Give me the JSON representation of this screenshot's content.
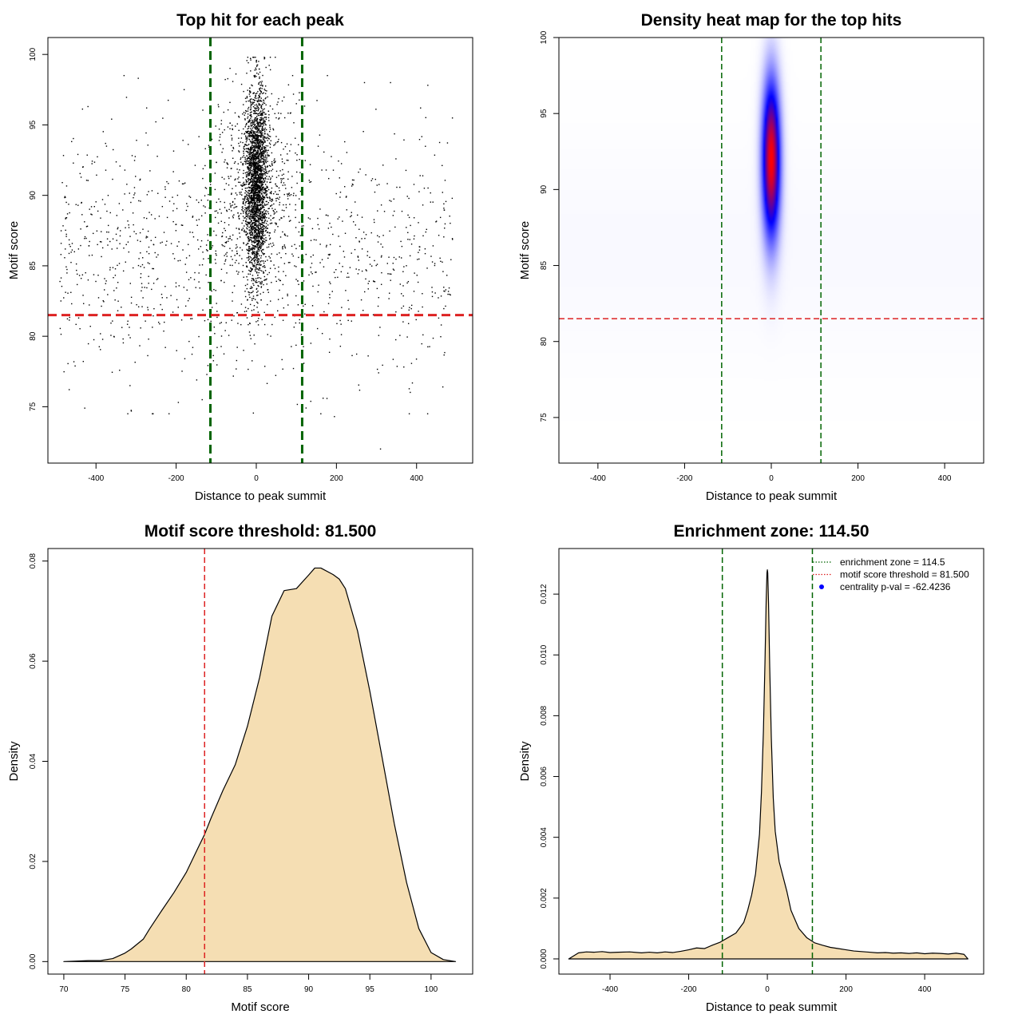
{
  "colors": {
    "zone": "#006400",
    "threshold": "#DD2222",
    "fill": "#F5DEB3",
    "line": "#000000",
    "points": "#000000",
    "heat_low": "#ffffff",
    "heat_mid": "#0000ff",
    "heat_high": "#ff0000"
  },
  "chart_data": [
    {
      "id": "scatter",
      "type": "scatter",
      "title": "Top hit for each peak",
      "xlabel": "Distance to peak summit",
      "ylabel": "Motif score",
      "xlim": [
        -520,
        540
      ],
      "ylim": [
        71,
        101.2
      ],
      "xticks": [
        -400,
        -200,
        0,
        200,
        400
      ],
      "yticks": [
        75,
        80,
        85,
        90,
        95,
        100
      ],
      "vlines": [
        -114.5,
        114.5
      ],
      "hline": 81.5,
      "points": {
        "central": {
          "n": 3200,
          "x_center": 0,
          "x_sd": 14,
          "y_mean": 90.8,
          "y_sd": 3.4,
          "y_min": 79,
          "y_max": 99.8
        },
        "background": {
          "n": 1150,
          "x_range": [
            -490,
            490
          ],
          "y_mean": 86,
          "y_sd": 4.5,
          "y_min": 74.5,
          "y_max": 98.5
        },
        "outliers": [
          [
            310,
            72
          ],
          [
            195,
            74.3
          ],
          [
            -135,
            75.5
          ],
          [
            -428,
            74.9
          ],
          [
            -330,
            98.5
          ],
          [
            -180,
            97.5
          ],
          [
            270,
            98
          ],
          [
            335,
            98
          ],
          [
            410,
            96.2
          ],
          [
            -420,
            96.3
          ]
        ]
      }
    },
    {
      "id": "heatmap",
      "type": "heatmap",
      "title": "Density heat map for the top hits",
      "xlabel": "Distance to peak summit",
      "ylabel": "Motif score",
      "xlim": [
        -490,
        490
      ],
      "ylim": [
        72,
        100
      ],
      "xticks": [
        -400,
        -200,
        0,
        200,
        400
      ],
      "yticks": [
        75,
        80,
        85,
        90,
        95,
        100
      ],
      "vlines": [
        -114.5,
        114.5
      ],
      "hline": 81.5,
      "peak": {
        "x": 0,
        "y": 92,
        "x_sd": 14,
        "y_sd": 3.5
      }
    },
    {
      "id": "score-density",
      "type": "area",
      "title": "Motif score threshold: 81.500",
      "xlabel": "Motif score",
      "ylabel": "Density",
      "xlim": [
        68.7,
        103.4
      ],
      "ylim": [
        -0.0025,
        0.0825
      ],
      "xticks": [
        70,
        75,
        80,
        85,
        90,
        95,
        100
      ],
      "yticks": [
        0.0,
        0.02,
        0.04,
        0.06,
        0.08
      ],
      "ytick_labels": [
        "0.00",
        "0.02",
        "0.04",
        "0.06",
        "0.08"
      ],
      "vline": 81.5,
      "x": [
        70,
        71,
        72,
        73,
        74,
        75,
        75.5,
        76,
        76.5,
        77,
        78,
        79,
        80,
        81,
        81.5,
        82,
        83,
        84,
        85,
        86,
        86.5,
        87,
        88,
        88.5,
        89,
        90,
        90.5,
        91,
        92,
        92.5,
        93,
        94,
        95,
        96,
        97,
        98,
        99,
        100,
        101,
        102
      ],
      "y": [
        0,
        0.0001,
        0.0002,
        0.0002,
        0.0006,
        0.0017,
        0.0025,
        0.0035,
        0.0045,
        0.0065,
        0.0102,
        0.0138,
        0.0178,
        0.0229,
        0.0254,
        0.0285,
        0.0342,
        0.0393,
        0.047,
        0.0568,
        0.0629,
        0.069,
        0.0741,
        0.0743,
        0.0745,
        0.0772,
        0.0786,
        0.0786,
        0.0773,
        0.0764,
        0.0745,
        0.066,
        0.054,
        0.0408,
        0.0275,
        0.0158,
        0.0066,
        0.0018,
        0.0004,
        0.0
      ]
    },
    {
      "id": "distance-density",
      "type": "area",
      "title": "Enrichment zone: 114.50",
      "xlabel": "Distance to peak summit",
      "ylabel": "Density",
      "xlim": [
        -530,
        550
      ],
      "ylim": [
        -0.0005,
        0.0135
      ],
      "xticks": [
        -400,
        -200,
        0,
        200,
        400
      ],
      "yticks": [
        0.0,
        0.002,
        0.004,
        0.006,
        0.008,
        0.01,
        0.012
      ],
      "ytick_labels": [
        "0.000",
        "0.002",
        "0.004",
        "0.006",
        "0.008",
        "0.010",
        "0.012"
      ],
      "vlines": [
        -114.5,
        114.5
      ],
      "x": [
        -505,
        -480,
        -460,
        -440,
        -420,
        -400,
        -380,
        -350,
        -320,
        -300,
        -280,
        -260,
        -240,
        -220,
        -200,
        -180,
        -160,
        -140,
        -120,
        -100,
        -80,
        -60,
        -50,
        -40,
        -30,
        -20,
        -15,
        -10,
        -6,
        -3,
        -1,
        0,
        1,
        3,
        6,
        10,
        15,
        20,
        30,
        40,
        50,
        60,
        80,
        100,
        120,
        140,
        160,
        180,
        200,
        220,
        240,
        260,
        280,
        300,
        320,
        340,
        360,
        380,
        400,
        420,
        440,
        460,
        480,
        500,
        510
      ],
      "y": [
        0.0,
        0.0002,
        0.00023,
        0.00022,
        0.00024,
        0.00021,
        0.00022,
        0.00023,
        0.0002,
        0.00022,
        0.0002,
        0.00023,
        0.00021,
        0.00025,
        0.0003,
        0.00036,
        0.00034,
        0.00045,
        0.00055,
        0.0007,
        0.00085,
        0.0012,
        0.0016,
        0.0021,
        0.0028,
        0.0041,
        0.0055,
        0.0075,
        0.0098,
        0.0118,
        0.0127,
        0.0128,
        0.0127,
        0.0117,
        0.0096,
        0.0073,
        0.0053,
        0.0042,
        0.0032,
        0.0027,
        0.0022,
        0.0016,
        0.001,
        0.0007,
        0.00053,
        0.00045,
        0.00038,
        0.00034,
        0.0003,
        0.00026,
        0.00024,
        0.00022,
        0.0002,
        0.00021,
        0.00019,
        0.0002,
        0.00018,
        0.0002,
        0.00017,
        0.00019,
        0.00018,
        0.00016,
        0.00019,
        0.00015,
        0.0
      ],
      "legend": {
        "position": "top-right",
        "entries": [
          {
            "label": "enrichment zone = 114.5",
            "color": "#006400",
            "style": "dotted-line"
          },
          {
            "label": "motif score threshold = 81.500",
            "color": "#DD2222",
            "style": "dotted-line"
          },
          {
            "label": "centrality p-val = -62.4236",
            "color": "#0000ff",
            "style": "point"
          }
        ]
      }
    }
  ]
}
